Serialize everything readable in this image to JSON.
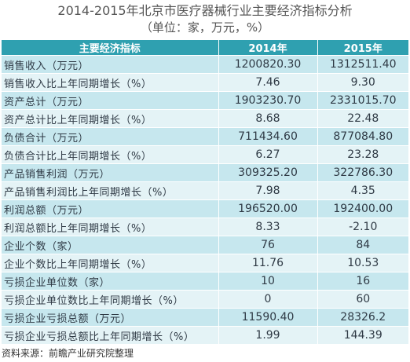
{
  "title": "2014-2015年北京市医疗器械行业主要经济指标分析",
  "subtitle": "（单位：家，万元，%）",
  "table": {
    "headers": [
      "主要经济指标",
      "2014年",
      "2015年"
    ],
    "rows": [
      [
        "销售收入（万元）",
        "1200820.30",
        "1312511.40"
      ],
      [
        "销售收入比上年同期增长（%）",
        "7.46",
        "9.30"
      ],
      [
        "资产总计（万元）",
        "1903230.70",
        "2331015.70"
      ],
      [
        "资产总计比上年同期增长（%）",
        "8.68",
        "22.48"
      ],
      [
        "负债合计（万元）",
        "711434.60",
        "877084.80"
      ],
      [
        "负债合计比上年同期增长（%）",
        "6.27",
        "23.28"
      ],
      [
        "产品销售利润（万元）",
        "309325.20",
        "322786.30"
      ],
      [
        "产品销售利润比上年同期增长（%）",
        "7.98",
        "4.35"
      ],
      [
        "利润总额（万元）",
        "196520.00",
        "192400.00"
      ],
      [
        "利润总额比上年同期增长（%）",
        "8.33",
        "-2.10"
      ],
      [
        "企业个数（家）",
        "76",
        "84"
      ],
      [
        "企业个数比上年同期增长（%）",
        "11.76",
        "10.53"
      ],
      [
        "亏损企业单位数（家）",
        "10",
        "16"
      ],
      [
        "亏损企业单位数比上年同期增长（%）",
        "0",
        "60"
      ],
      [
        "亏损企业亏损总额（万元）",
        "11590.40",
        "28326.2"
      ],
      [
        "亏损企业亏损总额比上年同期增长（%）",
        "1.99",
        "144.39"
      ]
    ]
  },
  "source": "资料来源：前瞻产业研究院整理",
  "colors": {
    "header_bg": "#2fa0b0",
    "row_odd": "#c6e7ee",
    "row_even": "#e4f3f6"
  }
}
